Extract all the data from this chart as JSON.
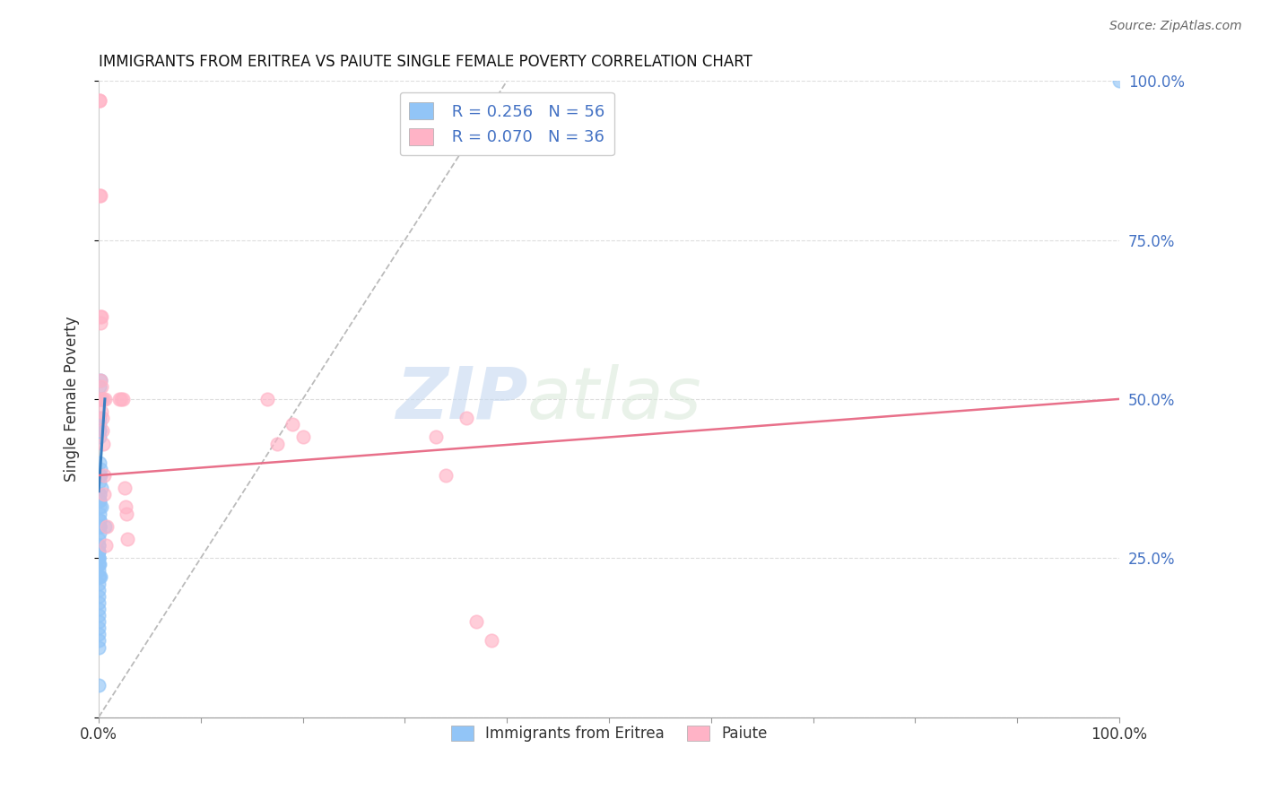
{
  "title": "IMMIGRANTS FROM ERITREA VS PAIUTE SINGLE FEMALE POVERTY CORRELATION CHART",
  "source": "Source: ZipAtlas.com",
  "ylabel": "Single Female Poverty",
  "right_ytick_labels": [
    "100.0%",
    "75.0%",
    "50.0%",
    "25.0%"
  ],
  "right_ytick_positions": [
    1.0,
    0.75,
    0.5,
    0.25
  ],
  "legend_blue_r": "R = 0.256",
  "legend_blue_n": "N = 56",
  "legend_pink_r": "R = 0.070",
  "legend_pink_n": "N = 36",
  "legend_label_blue": "Immigrants from Eritrea",
  "legend_label_pink": "Paiute",
  "blue_color": "#92c5f7",
  "pink_color": "#ffb3c6",
  "blue_line_color": "#3a7fc1",
  "pink_line_color": "#e8708a",
  "diag_line_color": "#bbbbbb",
  "watermark_zip": "ZIP",
  "watermark_atlas": "atlas",
  "blue_scatter_x": [
    0.0012,
    0.0013,
    0.0014,
    0.0008,
    0.0009,
    0.001,
    0.0011,
    0.0008,
    0.0006,
    0.0005,
    0.0005,
    0.0005,
    0.0005,
    0.0007,
    0.0007,
    0.0005,
    0.0005,
    0.0004,
    0.0004,
    0.0004,
    0.0004,
    0.0004,
    0.0004,
    0.0003,
    0.0003,
    0.0003,
    0.0003,
    0.0003,
    0.0003,
    0.0003,
    0.0003,
    0.0003,
    0.0003,
    0.0003,
    0.0003,
    0.0002,
    0.0002,
    0.0002,
    0.0002,
    0.0002,
    0.0002,
    0.0002,
    0.0002,
    0.0002,
    0.0002,
    0.0002,
    0.0002,
    0.0018,
    0.002,
    0.0022,
    0.0025,
    0.0015,
    0.001,
    0.001,
    0.006,
    1.0
  ],
  "blue_scatter_y": [
    0.52,
    0.53,
    0.5,
    0.46,
    0.45,
    0.45,
    0.47,
    0.44,
    0.4,
    0.38,
    0.37,
    0.35,
    0.34,
    0.35,
    0.34,
    0.33,
    0.32,
    0.31,
    0.31,
    0.3,
    0.3,
    0.3,
    0.29,
    0.28,
    0.27,
    0.27,
    0.26,
    0.26,
    0.25,
    0.25,
    0.25,
    0.24,
    0.24,
    0.23,
    0.22,
    0.21,
    0.2,
    0.19,
    0.18,
    0.17,
    0.16,
    0.15,
    0.14,
    0.13,
    0.12,
    0.11,
    0.05,
    0.38,
    0.39,
    0.36,
    0.33,
    0.22,
    0.24,
    0.22,
    0.3,
    1.0
  ],
  "pink_scatter_x": [
    0.0005,
    0.0005,
    0.001,
    0.0015,
    0.0015,
    0.002,
    0.002,
    0.0025,
    0.0025,
    0.003,
    0.003,
    0.0035,
    0.0035,
    0.004,
    0.0045,
    0.005,
    0.0055,
    0.0065,
    0.007,
    0.0075,
    0.02,
    0.022,
    0.024,
    0.0255,
    0.026,
    0.027,
    0.028,
    0.165,
    0.175,
    0.19,
    0.2,
    0.33,
    0.34,
    0.36,
    0.37,
    0.385
  ],
  "pink_scatter_y": [
    0.97,
    0.97,
    0.82,
    0.82,
    0.63,
    0.62,
    0.53,
    0.63,
    0.48,
    0.52,
    0.5,
    0.47,
    0.45,
    0.5,
    0.43,
    0.38,
    0.35,
    0.5,
    0.27,
    0.3,
    0.5,
    0.5,
    0.5,
    0.36,
    0.33,
    0.32,
    0.28,
    0.5,
    0.43,
    0.46,
    0.44,
    0.44,
    0.38,
    0.47,
    0.15,
    0.12
  ],
  "xlim": [
    0.0,
    1.0
  ],
  "ylim": [
    0.0,
    1.0
  ],
  "blue_trend_x": [
    0.0,
    0.006
  ],
  "blue_trend_y": [
    0.355,
    0.5
  ],
  "pink_trend_x": [
    0.0,
    1.0
  ],
  "pink_trend_y": [
    0.38,
    0.5
  ],
  "diag_line_x": [
    0.0,
    0.4
  ],
  "diag_line_y": [
    0.0,
    1.0
  ]
}
